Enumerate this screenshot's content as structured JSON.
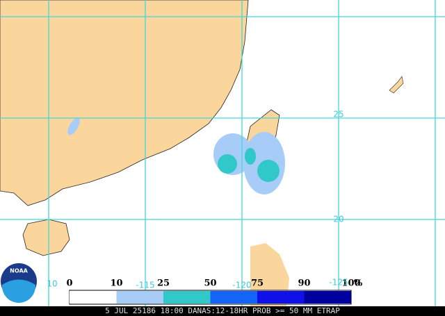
{
  "map": {
    "grid_labels": {
      "lat": [
        "25",
        "20"
      ],
      "lon": [
        "10",
        "-115",
        "-120",
        "-125"
      ]
    },
    "legend": {
      "labels": [
        "0",
        "10",
        "25",
        "50",
        "75",
        "90",
        "100"
      ],
      "unit": "%",
      "colors": [
        "#ffffff",
        "#a8ccf8",
        "#30c8c8",
        "#1464f8",
        "#1010e8",
        "#0000a0"
      ]
    },
    "logo": "NOAA",
    "footer": "5 JUL 25186 18:00 DANAS:12-18HR PROB >= 50 MM ETRAP"
  }
}
